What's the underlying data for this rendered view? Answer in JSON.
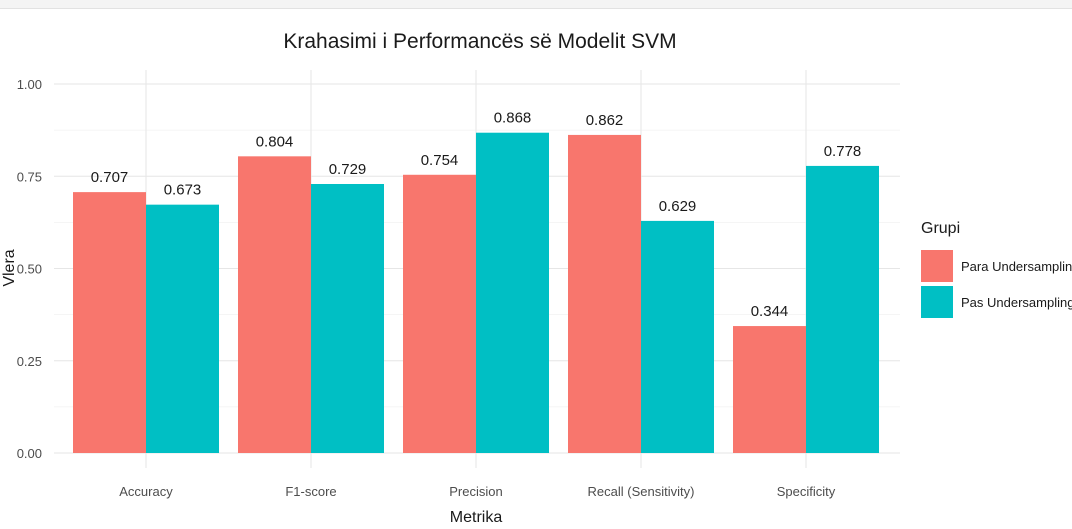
{
  "chart_data": {
    "type": "bar",
    "title": "Krahasimi i Performancës së Modelit SVM",
    "xlabel": "Metrika",
    "ylabel": "Vlera",
    "categories": [
      "Accuracy",
      "F1-score",
      "Precision",
      "Recall (Sensitivity)",
      "Specificity"
    ],
    "series": [
      {
        "name": "Para Undersampling",
        "values": [
          0.707,
          0.804,
          0.754,
          0.862,
          0.344
        ],
        "color": "#F8766D"
      },
      {
        "name": "Pas Undersampling",
        "values": [
          0.673,
          0.729,
          0.868,
          0.629,
          0.778
        ],
        "color": "#00BFC4"
      }
    ],
    "ylim": [
      0,
      1
    ],
    "yticks": [
      "0.00",
      "0.25",
      "0.50",
      "0.75",
      "1.00"
    ],
    "legend_title": "Grupi",
    "legend_position": "right",
    "grid": true
  }
}
